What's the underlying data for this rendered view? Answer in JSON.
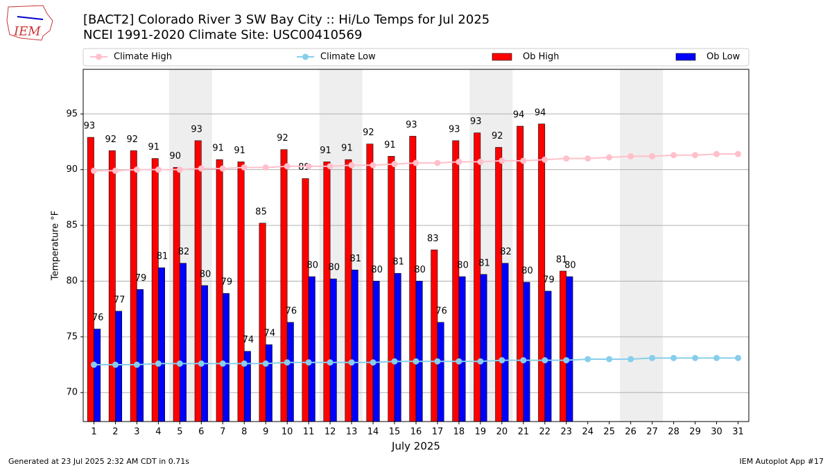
{
  "chart_data": {
    "type": "bar",
    "title": "[BACT2] Colorado River 3 SW Bay City :: Hi/Lo Temps for Jul 2025",
    "subtitle": "NCEI 1991-2020 Climate Site: USC00410569",
    "logo_text": "IEM",
    "xlabel": "July 2025",
    "ylabel": "Temperature °F",
    "footer_left": "Generated at 23 Jul 2025 2:32 AM CDT in 0.71s",
    "footer_right": "IEM Autoplot App #17",
    "x": [
      1,
      2,
      3,
      4,
      5,
      6,
      7,
      8,
      9,
      10,
      11,
      12,
      13,
      14,
      15,
      16,
      17,
      18,
      19,
      20,
      21,
      22,
      23,
      24,
      25,
      26,
      27,
      28,
      29,
      30,
      31
    ],
    "xlim": [
      0.5,
      31.5
    ],
    "xticks": [
      1,
      2,
      3,
      4,
      5,
      6,
      7,
      8,
      9,
      10,
      11,
      12,
      13,
      14,
      15,
      16,
      17,
      18,
      19,
      20,
      21,
      22,
      23,
      24,
      25,
      26,
      27,
      28,
      29,
      30,
      31
    ],
    "ylim": [
      67.4,
      99
    ],
    "yticks": [
      70,
      75,
      80,
      85,
      90,
      95
    ],
    "grid": true,
    "shaded_spans": [
      [
        4.5,
        6.5
      ],
      [
        11.5,
        13.5
      ],
      [
        18.5,
        20.5
      ],
      [
        25.5,
        27.5
      ]
    ],
    "shade_color": "#eeeeee",
    "series": [
      {
        "name": "Climate High",
        "kind": "line",
        "color": "#ffc0cb",
        "values": [
          89.9,
          89.9,
          90.0,
          90.0,
          90.0,
          90.1,
          90.1,
          90.2,
          90.2,
          90.3,
          90.3,
          90.3,
          90.4,
          90.4,
          90.5,
          90.6,
          90.6,
          90.7,
          90.7,
          90.8,
          90.8,
          90.9,
          91.0,
          91.0,
          91.1,
          91.2,
          91.2,
          91.3,
          91.3,
          91.4,
          91.4
        ]
      },
      {
        "name": "Climate Low",
        "kind": "line",
        "color": "#87ceeb",
        "values": [
          72.5,
          72.5,
          72.5,
          72.6,
          72.6,
          72.6,
          72.6,
          72.6,
          72.6,
          72.7,
          72.7,
          72.7,
          72.7,
          72.7,
          72.8,
          72.8,
          72.8,
          72.8,
          72.8,
          72.9,
          72.9,
          72.9,
          72.9,
          73.0,
          73.0,
          73.0,
          73.1,
          73.1,
          73.1,
          73.1,
          73.1
        ]
      },
      {
        "name": "Ob High",
        "kind": "bar",
        "color": "#ff0000",
        "values": [
          92.9,
          91.7,
          91.7,
          91.0,
          90.2,
          92.6,
          90.9,
          90.7,
          85.2,
          91.8,
          89.2,
          90.7,
          90.9,
          92.3,
          91.2,
          93.0,
          82.8,
          92.6,
          93.3,
          92.0,
          93.9,
          94.1,
          80.9,
          null,
          null,
          null,
          null,
          null,
          null,
          null,
          null
        ],
        "value_labels": [
          "93",
          "92",
          "92",
          "91",
          "90",
          "93",
          "91",
          "91",
          "85",
          "92",
          "89",
          "91",
          "91",
          "92",
          "91",
          "93",
          "83",
          "93",
          "93",
          "92",
          "94",
          "94",
          "81",
          null,
          null,
          null,
          null,
          null,
          null,
          null,
          null
        ]
      },
      {
        "name": "Ob Low",
        "kind": "bar",
        "color": "#0000ff",
        "values": [
          75.7,
          77.3,
          79.25,
          81.2,
          81.6,
          79.6,
          78.9,
          73.7,
          74.3,
          76.3,
          80.4,
          80.2,
          81.0,
          80.0,
          80.7,
          80.0,
          76.3,
          80.4,
          80.6,
          81.6,
          79.9,
          79.1,
          80.4,
          null,
          null,
          null,
          null,
          null,
          null,
          null,
          null
        ],
        "value_labels": [
          "76",
          "77",
          "79",
          "81",
          "82",
          "80",
          "79",
          "74",
          "74",
          "76",
          "80",
          "80",
          "81",
          "80",
          "81",
          "80",
          "76",
          "80",
          "81",
          "82",
          "80",
          "79",
          "80",
          null,
          null,
          null,
          null,
          null,
          null,
          null,
          null
        ]
      }
    ]
  }
}
